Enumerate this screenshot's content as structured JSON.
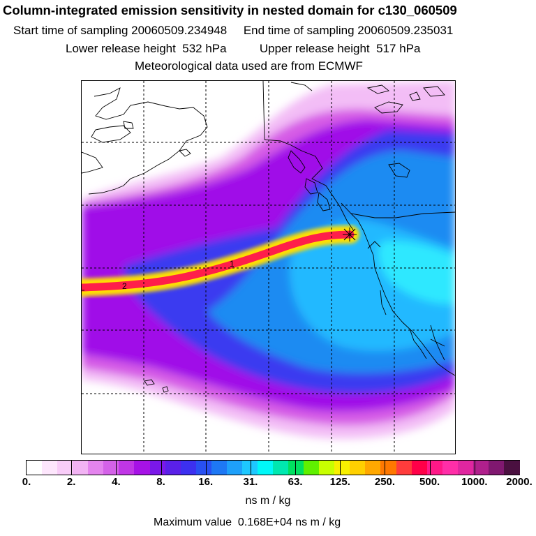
{
  "header": {
    "title": "Column-integrated emission sensitivity in nested domain for c130_060509",
    "sampling": "Start time of sampling 20060509.234948     End time of sampling 20060509.235031",
    "release": "Lower release height  532 hPa          Upper release height  517 hPa",
    "met": "Meteorological data used are from ECMWF"
  },
  "map": {
    "trajectory_labels": [
      "1",
      "2"
    ],
    "colors": {
      "magenta_light": "#f3bdf6",
      "magenta": "#d65be6",
      "purple": "#a010e8",
      "blue": "#3b3bf0",
      "med_blue": "#1f8bf2",
      "light_blue": "#22b9ff",
      "cyan": "#2ee8ff",
      "plume_core": "#ff1e4a",
      "plume_edge": "#ffe000"
    }
  },
  "colorbar": {
    "colors": [
      "#ffffff",
      "#fde6fc",
      "#f8ccf8",
      "#f2b3f4",
      "#e484ee",
      "#d462e8",
      "#c036e6",
      "#a612e6",
      "#7a18e8",
      "#5a20e8",
      "#3c30f0",
      "#2850f2",
      "#1e78f4",
      "#1ea0fa",
      "#1ec8ff",
      "#00f8f8",
      "#00e8b0",
      "#00e060",
      "#60f000",
      "#c8ff00",
      "#f8f000",
      "#ffd000",
      "#ffa800",
      "#ff7800",
      "#ff3c3c",
      "#ff0048",
      "#ff1888",
      "#ff2ea8",
      "#e026a0",
      "#b0208c",
      "#801870",
      "#4a1040"
    ],
    "ticks": [
      "0.",
      "2.",
      "4.",
      "8.",
      "16.",
      "31.",
      "63.",
      "125.",
      "250.",
      "500.",
      "1000.",
      "2000."
    ],
    "unit": "ns m / kg"
  },
  "footer": {
    "max_value": "Maximum value  0.168E+04 ns m / kg"
  }
}
